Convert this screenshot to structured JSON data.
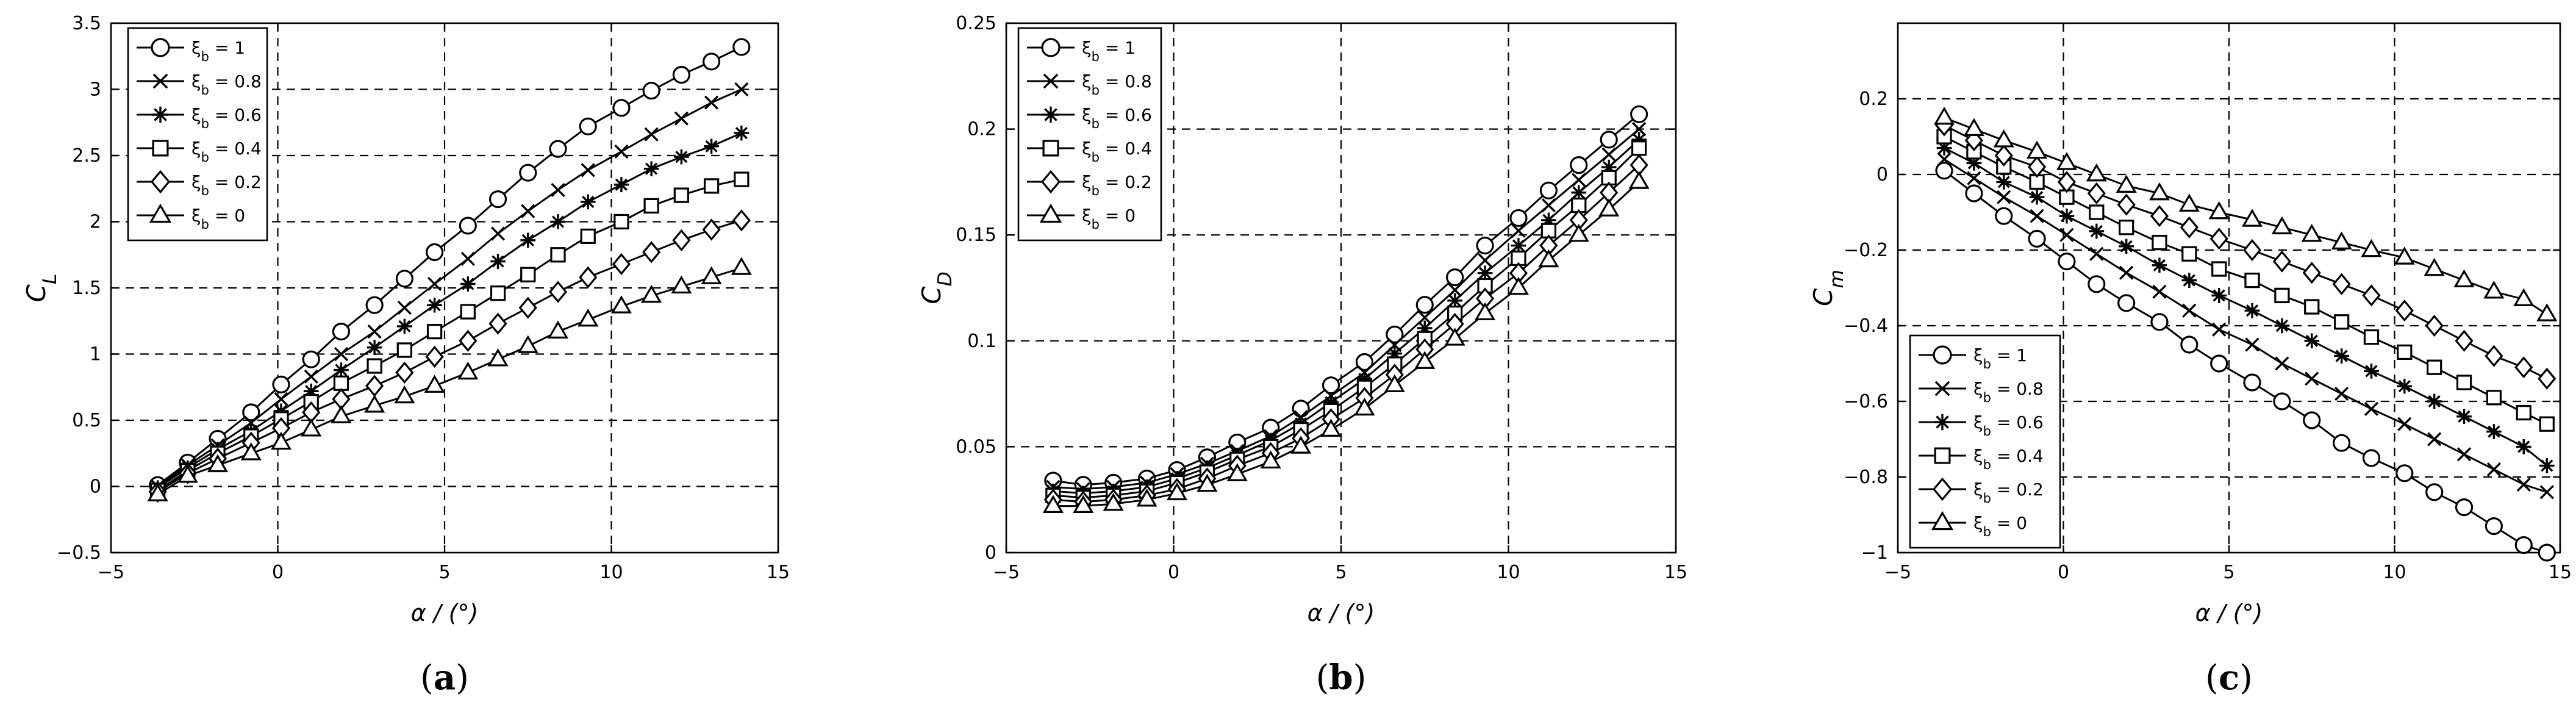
{
  "chart_data": [
    {
      "type": "line",
      "panel_label": "(a)",
      "xlabel": "α / (°)",
      "ylabel": "C_L",
      "xlim": [
        -5,
        15
      ],
      "ylim": [
        -0.5,
        3.5
      ],
      "xticks": [
        -5,
        0,
        5,
        10,
        15
      ],
      "yticks": [
        -0.5,
        0,
        0.5,
        1,
        1.5,
        2,
        2.5,
        3,
        3.5
      ],
      "grid": true,
      "legend_position": "top-left",
      "x": [
        -3.6,
        -2.7,
        -1.8,
        -0.8,
        0.1,
        1.0,
        1.9,
        2.9,
        3.8,
        4.7,
        5.7,
        6.6,
        7.5,
        8.4,
        9.3,
        10.3,
        11.2,
        12.1,
        13.0,
        13.9
      ],
      "series": [
        {
          "name": "ξ_b = 1",
          "marker": "circle",
          "values": [
            0.01,
            0.18,
            0.36,
            0.56,
            0.77,
            0.96,
            1.17,
            1.37,
            1.57,
            1.77,
            1.97,
            2.17,
            2.37,
            2.55,
            2.72,
            2.86,
            2.99,
            3.11,
            3.21,
            3.32
          ]
        },
        {
          "name": "ξ_b = 0.8",
          "marker": "cross",
          "values": [
            0.0,
            0.16,
            0.31,
            0.48,
            0.66,
            0.83,
            1.0,
            1.17,
            1.35,
            1.53,
            1.72,
            1.91,
            2.08,
            2.24,
            2.39,
            2.53,
            2.66,
            2.78,
            2.9,
            3.0
          ]
        },
        {
          "name": "ξ_b = 0.6",
          "marker": "asterisk",
          "values": [
            -0.01,
            0.14,
            0.28,
            0.42,
            0.57,
            0.72,
            0.88,
            1.05,
            1.21,
            1.37,
            1.53,
            1.7,
            1.86,
            2.0,
            2.15,
            2.28,
            2.4,
            2.49,
            2.57,
            2.67
          ]
        },
        {
          "name": "ξ_b = 0.4",
          "marker": "square",
          "values": [
            -0.03,
            0.12,
            0.25,
            0.38,
            0.51,
            0.64,
            0.78,
            0.91,
            1.03,
            1.17,
            1.32,
            1.46,
            1.6,
            1.75,
            1.89,
            2.0,
            2.12,
            2.2,
            2.27,
            2.32
          ]
        },
        {
          "name": "ξ_b = 0.2",
          "marker": "diamond",
          "values": [
            -0.04,
            0.1,
            0.21,
            0.33,
            0.44,
            0.56,
            0.66,
            0.76,
            0.86,
            0.98,
            1.1,
            1.23,
            1.35,
            1.47,
            1.58,
            1.68,
            1.77,
            1.86,
            1.94,
            2.01
          ]
        },
        {
          "name": "ξ_b = 0",
          "marker": "triangle",
          "values": [
            -0.06,
            0.08,
            0.16,
            0.25,
            0.33,
            0.43,
            0.53,
            0.61,
            0.68,
            0.76,
            0.86,
            0.96,
            1.06,
            1.17,
            1.26,
            1.36,
            1.44,
            1.51,
            1.58,
            1.65
          ]
        }
      ]
    },
    {
      "type": "line",
      "panel_label": "(b)",
      "xlabel": "α / (°)",
      "ylabel": "C_D",
      "xlim": [
        -5,
        15
      ],
      "ylim": [
        0,
        0.25
      ],
      "xticks": [
        -5,
        0,
        5,
        10,
        15
      ],
      "yticks": [
        0,
        0.05,
        0.1,
        0.15,
        0.2,
        0.25
      ],
      "grid": true,
      "legend_position": "top-left",
      "x": [
        -3.6,
        -2.7,
        -1.8,
        -0.8,
        0.1,
        1.0,
        1.9,
        2.9,
        3.8,
        4.7,
        5.7,
        6.6,
        7.5,
        8.4,
        9.3,
        10.3,
        11.2,
        12.1,
        13.0,
        13.9
      ],
      "series": [
        {
          "name": "ξ_b = 1",
          "marker": "circle",
          "values": [
            0.034,
            0.032,
            0.033,
            0.035,
            0.039,
            0.045,
            0.052,
            0.059,
            0.068,
            0.079,
            0.09,
            0.103,
            0.117,
            0.13,
            0.145,
            0.158,
            0.171,
            0.183,
            0.195,
            0.207
          ]
        },
        {
          "name": "ξ_b = 0.8",
          "marker": "cross",
          "values": [
            0.031,
            0.03,
            0.031,
            0.033,
            0.037,
            0.042,
            0.048,
            0.055,
            0.064,
            0.074,
            0.085,
            0.098,
            0.111,
            0.124,
            0.138,
            0.152,
            0.164,
            0.176,
            0.188,
            0.2
          ]
        },
        {
          "name": "ξ_b = 0.6",
          "marker": "asterisk",
          "values": [
            0.029,
            0.028,
            0.029,
            0.031,
            0.035,
            0.04,
            0.046,
            0.053,
            0.061,
            0.071,
            0.082,
            0.094,
            0.106,
            0.119,
            0.132,
            0.145,
            0.157,
            0.17,
            0.182,
            0.195
          ]
        },
        {
          "name": "ξ_b = 0.4",
          "marker": "square",
          "values": [
            0.027,
            0.026,
            0.027,
            0.029,
            0.033,
            0.038,
            0.044,
            0.05,
            0.058,
            0.067,
            0.078,
            0.089,
            0.101,
            0.113,
            0.126,
            0.139,
            0.152,
            0.164,
            0.177,
            0.191
          ]
        },
        {
          "name": "ξ_b = 0.2",
          "marker": "diamond",
          "values": [
            0.025,
            0.024,
            0.025,
            0.027,
            0.03,
            0.035,
            0.041,
            0.047,
            0.054,
            0.063,
            0.073,
            0.084,
            0.096,
            0.108,
            0.12,
            0.132,
            0.145,
            0.157,
            0.17,
            0.183
          ]
        },
        {
          "name": "ξ_b = 0",
          "marker": "triangle",
          "values": [
            0.022,
            0.022,
            0.023,
            0.025,
            0.028,
            0.032,
            0.037,
            0.043,
            0.05,
            0.058,
            0.068,
            0.079,
            0.09,
            0.101,
            0.113,
            0.125,
            0.138,
            0.15,
            0.162,
            0.175
          ]
        }
      ]
    },
    {
      "type": "line",
      "panel_label": "(c)",
      "xlabel": "α / (°)",
      "ylabel": "C_m",
      "xlim": [
        -5,
        15
      ],
      "ylim": [
        -1,
        0.4
      ],
      "xticks": [
        -5,
        0,
        5,
        10,
        15
      ],
      "yticks": [
        -1,
        -0.8,
        -0.6,
        -0.4,
        -0.2,
        0,
        0.2
      ],
      "grid": true,
      "legend_position": "bottom-left",
      "x": [
        -3.6,
        -2.7,
        -1.8,
        -0.8,
        0.1,
        1.0,
        1.9,
        2.9,
        3.8,
        4.7,
        5.7,
        6.6,
        7.5,
        8.4,
        9.3,
        10.3,
        11.2,
        12.1,
        13.0,
        13.9,
        14.6
      ],
      "series": [
        {
          "name": "ξ_b = 1",
          "marker": "circle",
          "values": [
            0.01,
            -0.05,
            -0.11,
            -0.17,
            -0.23,
            -0.29,
            -0.34,
            -0.39,
            -0.45,
            -0.5,
            -0.55,
            -0.6,
            -0.65,
            -0.71,
            -0.75,
            -0.79,
            -0.84,
            -0.88,
            -0.93,
            -0.98,
            -1.0
          ]
        },
        {
          "name": "ξ_b = 0.8",
          "marker": "cross",
          "values": [
            0.04,
            -0.01,
            -0.06,
            -0.11,
            -0.16,
            -0.21,
            -0.26,
            -0.31,
            -0.36,
            -0.41,
            -0.45,
            -0.5,
            -0.54,
            -0.58,
            -0.62,
            -0.66,
            -0.7,
            -0.74,
            -0.78,
            -0.82,
            -0.84
          ]
        },
        {
          "name": "ξ_b = 0.6",
          "marker": "asterisk",
          "values": [
            0.07,
            0.03,
            -0.02,
            -0.06,
            -0.11,
            -0.15,
            -0.19,
            -0.24,
            -0.28,
            -0.32,
            -0.36,
            -0.4,
            -0.44,
            -0.48,
            -0.52,
            -0.56,
            -0.6,
            -0.64,
            -0.68,
            -0.72,
            -0.77
          ]
        },
        {
          "name": "ξ_b = 0.4",
          "marker": "square",
          "values": [
            0.1,
            0.06,
            0.02,
            -0.02,
            -0.06,
            -0.1,
            -0.14,
            -0.18,
            -0.21,
            -0.25,
            -0.28,
            -0.32,
            -0.35,
            -0.39,
            -0.43,
            -0.47,
            -0.51,
            -0.55,
            -0.59,
            -0.63,
            -0.66
          ]
        },
        {
          "name": "ξ_b = 0.2",
          "marker": "diamond",
          "values": [
            0.13,
            0.09,
            0.05,
            0.02,
            -0.02,
            -0.05,
            -0.08,
            -0.11,
            -0.14,
            -0.17,
            -0.2,
            -0.23,
            -0.26,
            -0.29,
            -0.32,
            -0.36,
            -0.4,
            -0.44,
            -0.48,
            -0.51,
            -0.54
          ]
        },
        {
          "name": "ξ_b = 0",
          "marker": "triangle",
          "values": [
            0.15,
            0.12,
            0.09,
            0.06,
            0.03,
            0.0,
            -0.03,
            -0.05,
            -0.08,
            -0.1,
            -0.12,
            -0.14,
            -0.16,
            -0.18,
            -0.2,
            -0.22,
            -0.25,
            -0.28,
            -0.31,
            -0.33,
            -0.37
          ]
        }
      ]
    }
  ]
}
